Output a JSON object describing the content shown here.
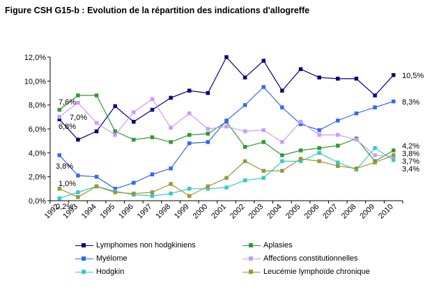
{
  "title": "Figure CSH G15-b : Evolution de la répartition des indications d'allogreffe",
  "chart_data": {
    "type": "line",
    "categories": [
      "1992",
      "1993",
      "1994",
      "1995",
      "1996",
      "1997",
      "1998",
      "1999",
      "2000",
      "2001",
      "2002",
      "2003",
      "2004",
      "2005",
      "2006",
      "2007",
      "2008",
      "2009",
      "2010"
    ],
    "y_ticks": [
      "0,0%",
      "2,0%",
      "4,0%",
      "6,0%",
      "8,0%",
      "10,0%",
      "12,0%"
    ],
    "ylim": [
      0,
      12
    ],
    "grid": false,
    "legend_position": "bottom",
    "series": [
      {
        "name": "Lymphomes non hodgkiniens",
        "color": "#000080",
        "marker": "square",
        "values": [
          6.8,
          5.1,
          5.8,
          7.9,
          6.6,
          7.6,
          8.6,
          9.2,
          9.0,
          12.0,
          10.3,
          11.7,
          9.2,
          11.0,
          10.3,
          10.2,
          10.2,
          8.8,
          10.5
        ]
      },
      {
        "name": "Aplasies",
        "color": "#339933",
        "marker": "square",
        "values": [
          7.6,
          8.8,
          8.8,
          5.8,
          5.1,
          5.3,
          4.9,
          5.5,
          5.6,
          6.6,
          4.5,
          4.9,
          3.8,
          4.2,
          4.4,
          4.6,
          5.2,
          3.3,
          4.2
        ]
      },
      {
        "name": "Myélome",
        "color": "#3366FF",
        "marker": "square",
        "values": [
          3.8,
          2.1,
          2.0,
          1.0,
          1.5,
          2.2,
          2.7,
          4.8,
          4.9,
          6.7,
          8.0,
          9.5,
          7.8,
          6.4,
          5.9,
          6.7,
          7.3,
          7.8,
          8.3
        ]
      },
      {
        "name": "Affections constitutionnelles",
        "color": "#CC99FF",
        "marker": "square",
        "values": [
          7.0,
          8.2,
          6.5,
          5.5,
          7.4,
          8.5,
          6.1,
          7.3,
          6.0,
          6.2,
          5.8,
          5.9,
          4.9,
          6.6,
          5.5,
          5.5,
          5.1,
          3.8,
          3.7
        ]
      },
      {
        "name": "Hodgkin",
        "color": "#33CCCC",
        "marker": "square",
        "values": [
          0.2,
          0.7,
          1.2,
          0.8,
          0.5,
          0.4,
          0.6,
          1.0,
          1.0,
          1.1,
          1.7,
          1.9,
          3.3,
          3.3,
          4.0,
          3.2,
          2.6,
          4.4,
          3.4
        ]
      },
      {
        "name": "Leucémie lymphoïde chronique",
        "color": "#999933",
        "marker": "square",
        "values": [
          1.0,
          0.3,
          1.2,
          0.7,
          0.6,
          0.7,
          1.4,
          0.4,
          1.2,
          1.9,
          3.3,
          2.5,
          2.5,
          3.5,
          3.3,
          2.9,
          2.7,
          3.2,
          3.8
        ]
      }
    ],
    "start_labels": [
      {
        "series": 1,
        "text": "7,6%"
      },
      {
        "series": 3,
        "text": "7,0%"
      },
      {
        "series": 0,
        "text": "6,8%"
      },
      {
        "series": 2,
        "text": "3,8%"
      },
      {
        "series": 5,
        "text": "1,0%"
      },
      {
        "series": 4,
        "text": "0,2%"
      }
    ],
    "end_labels": [
      {
        "series": 0,
        "text": "10,5%"
      },
      {
        "series": 2,
        "text": "8,3%"
      },
      {
        "series": 1,
        "text": "4,2%"
      },
      {
        "series": 5,
        "text": "3,8%"
      },
      {
        "series": 3,
        "text": "3,7%"
      },
      {
        "series": 4,
        "text": "3,4%"
      }
    ]
  }
}
